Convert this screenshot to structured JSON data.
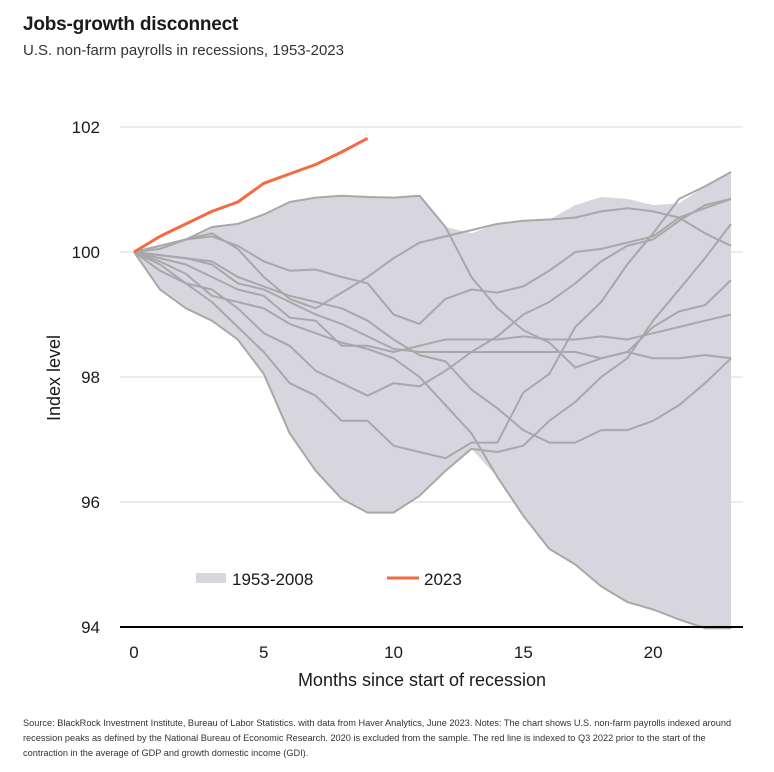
{
  "title": "Jobs-growth disconnect",
  "subtitle": "U.S. non-farm payrolls in recessions, 1953-2023",
  "footnote": "Source: BlackRock Investment Institute, Bureau of Labor Statistics. with data from Haver Analytics, June 2023. Notes: The chart shows U.S. non-farm payrolls indexed around recession peaks as defined by the National Bureau of Economic Research. 2020 is excluded from the sample. The red line is indexed to Q3 2022 prior to the start of the contraction in the average of GDP and growth domestic income (GDI).",
  "colors": {
    "range": "#d7d6de",
    "historical": "#a8a8a8",
    "current": "#f26b43",
    "grid": "#d9d9d9",
    "axis": "#000000"
  },
  "chart_data": {
    "type": "line",
    "xlabel": "Months since start of recession",
    "ylabel": "Index level",
    "xlim": [
      0,
      23
    ],
    "ylim": [
      94,
      102
    ],
    "xticks": [
      0,
      5,
      10,
      15,
      20
    ],
    "yticks": [
      94,
      96,
      98,
      100,
      102
    ],
    "grid": "horizontal",
    "legend": [
      {
        "label": "1953-2008",
        "kind": "band"
      },
      {
        "label": "2023",
        "kind": "line"
      }
    ],
    "range_band": {
      "name": "1953-2008",
      "upper": [
        100,
        100.1,
        100.2,
        100.4,
        100.45,
        100.6,
        100.8,
        100.87,
        100.9,
        100.88,
        100.87,
        100.9,
        100.4,
        100.3,
        100.45,
        100.5,
        100.52,
        100.75,
        100.88,
        100.85,
        100.75,
        100.78,
        101.05,
        101.28
      ],
      "lower": [
        100,
        99.4,
        99.1,
        98.9,
        98.6,
        98.05,
        97.1,
        96.5,
        96.05,
        95.83,
        95.83,
        96.1,
        96.5,
        96.85,
        96.4,
        95.78,
        95.25,
        95.0,
        94.65,
        94.4,
        94.28,
        94.12,
        93.98,
        93.98
      ]
    },
    "historical_series": [
      [
        100,
        99.4,
        99.1,
        98.9,
        98.6,
        98.05,
        97.1,
        96.5,
        96.05,
        95.83,
        95.83,
        96.1,
        96.5,
        96.85,
        96.8,
        96.9,
        97.3,
        97.6,
        98.0,
        98.3,
        98.9,
        99.4,
        99.9,
        100.45
      ],
      [
        100,
        99.7,
        99.5,
        99.2,
        98.8,
        98.4,
        97.9,
        97.7,
        97.3,
        97.3,
        96.9,
        96.8,
        96.7,
        96.95,
        96.95,
        97.75,
        98.05,
        98.8,
        99.2,
        99.8,
        100.3,
        100.85,
        101.05,
        101.28
      ],
      [
        100,
        99.8,
        99.5,
        99.4,
        99.1,
        98.7,
        98.5,
        98.1,
        97.9,
        97.7,
        97.9,
        97.85,
        98.1,
        98.4,
        98.65,
        99.0,
        99.2,
        99.5,
        99.85,
        100.1,
        100.2,
        100.5,
        100.75,
        100.85
      ],
      [
        100,
        99.9,
        99.8,
        99.6,
        99.4,
        99.3,
        98.95,
        98.9,
        98.5,
        98.5,
        98.4,
        98.5,
        98.6,
        98.6,
        98.6,
        98.65,
        98.6,
        98.6,
        98.65,
        98.6,
        98.7,
        98.8,
        98.9,
        99.0
      ],
      [
        100,
        99.95,
        99.9,
        99.8,
        99.5,
        99.4,
        99.2,
        99.0,
        98.85,
        98.65,
        98.45,
        98.4,
        98.4,
        98.4,
        98.4,
        98.4,
        98.4,
        98.4,
        98.3,
        98.4,
        98.3,
        98.3,
        98.35,
        98.3
      ],
      [
        100,
        99.95,
        99.9,
        99.85,
        99.6,
        99.45,
        99.3,
        99.2,
        99.1,
        98.9,
        98.6,
        98.35,
        98.25,
        97.8,
        97.5,
        97.15,
        96.95,
        96.95,
        97.15,
        97.15,
        97.3,
        97.55,
        97.9,
        98.3
      ],
      [
        100,
        100.05,
        100.2,
        100.25,
        100.1,
        99.85,
        99.7,
        99.72,
        99.6,
        99.5,
        99.0,
        98.85,
        99.25,
        99.4,
        99.35,
        99.45,
        99.7,
        100.0,
        100.05,
        100.15,
        100.25,
        100.55,
        100.7,
        100.85
      ],
      [
        100,
        100.1,
        100.2,
        100.3,
        100.05,
        99.6,
        99.25,
        99.1,
        99.35,
        99.6,
        99.9,
        100.15,
        100.25,
        100.35,
        100.45,
        100.5,
        100.52,
        100.55,
        100.65,
        100.7,
        100.65,
        100.55,
        100.3,
        100.1
      ],
      [
        100,
        99.85,
        99.65,
        99.3,
        99.2,
        99.1,
        98.85,
        98.7,
        98.55,
        98.45,
        98.3,
        98.0,
        97.55,
        97.1,
        96.4,
        95.78,
        95.25,
        95.0,
        94.65,
        94.4,
        94.28,
        94.12,
        93.98,
        93.98
      ],
      [
        100,
        100.1,
        100.2,
        100.4,
        100.45,
        100.6,
        100.8,
        100.87,
        100.9,
        100.88,
        100.87,
        100.9,
        100.4,
        99.6,
        99.1,
        98.75,
        98.55,
        98.15,
        98.3,
        98.4,
        98.8,
        99.05,
        99.15,
        99.55
      ]
    ],
    "series": [
      {
        "name": "2023",
        "x": [
          0,
          1,
          2,
          3,
          4,
          5,
          6,
          7,
          8,
          9
        ],
        "values": [
          100,
          100.25,
          100.45,
          100.65,
          100.8,
          101.1,
          101.25,
          101.4,
          101.6,
          101.82
        ]
      }
    ]
  }
}
